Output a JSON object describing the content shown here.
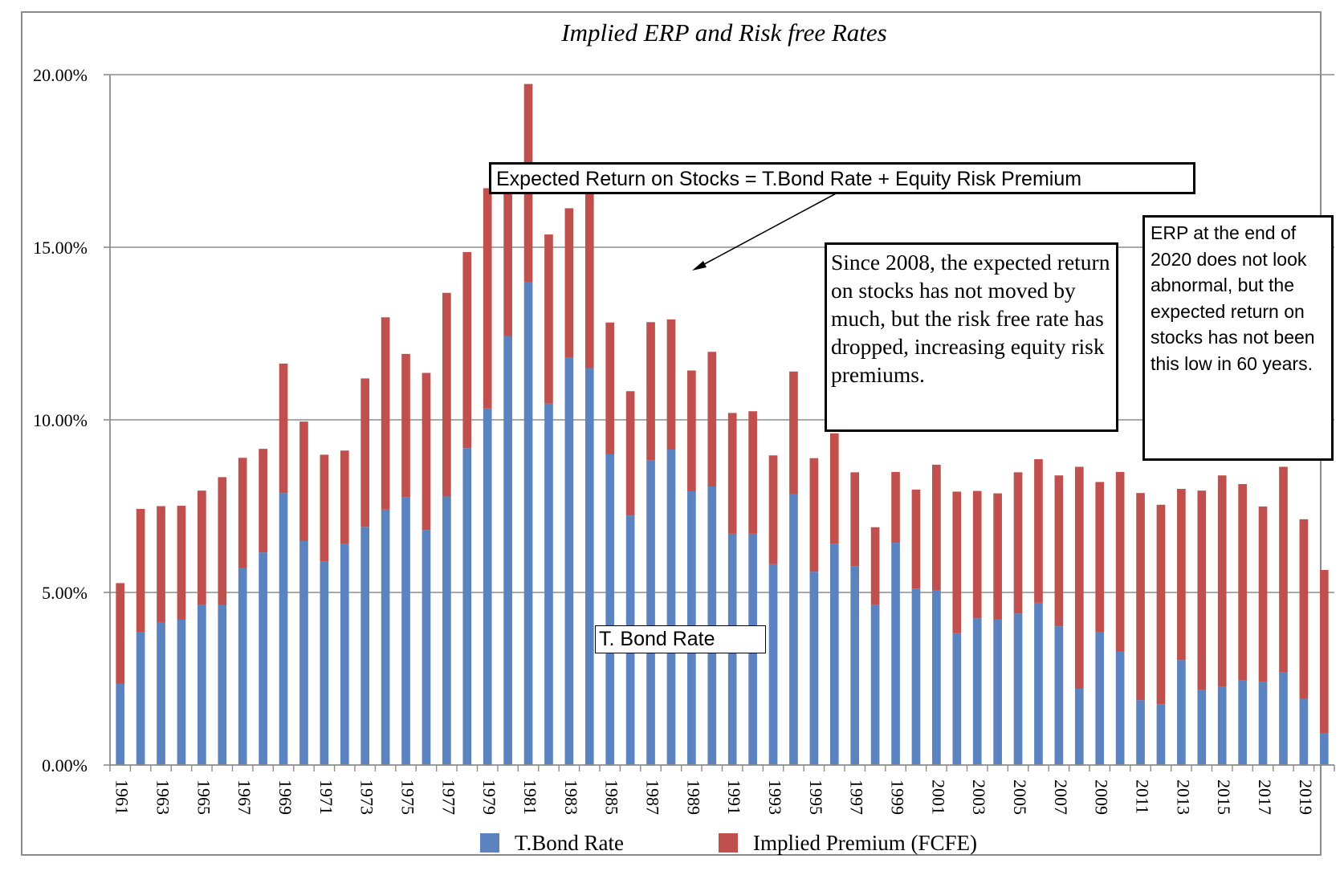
{
  "chart_data": {
    "type": "bar",
    "stacked": true,
    "title": "Implied ERP and Risk free Rates",
    "xlabel": "",
    "ylabel": "",
    "ylim": [
      0,
      0.2
    ],
    "y_ticks": [
      "0.00%",
      "5.00%",
      "10.00%",
      "15.00%",
      "20.00%"
    ],
    "grid": true,
    "legend_position": "bottom",
    "categories": [
      "1961",
      "1962",
      "1963",
      "1964",
      "1965",
      "1966",
      "1967",
      "1968",
      "1969",
      "1970",
      "1971",
      "1972",
      "1973",
      "1974",
      "1975",
      "1976",
      "1977",
      "1978",
      "1979",
      "1980",
      "1981",
      "1982",
      "1983",
      "1984",
      "1985",
      "1986",
      "1987",
      "1988",
      "1989",
      "1990",
      "1991",
      "1992",
      "1993",
      "1994",
      "1995",
      "1996",
      "1997",
      "1998",
      "1999",
      "2000",
      "2001",
      "2002",
      "2003",
      "2004",
      "2005",
      "2006",
      "2007",
      "2008",
      "2009",
      "2010",
      "2011",
      "2012",
      "2013",
      "2014",
      "2015",
      "2016",
      "2017",
      "2018",
      "2019",
      "2020"
    ],
    "x_tick_labels": [
      "1961",
      "1963",
      "1965",
      "1967",
      "1969",
      "1971",
      "1973",
      "1975",
      "1977",
      "1979",
      "1981",
      "1983",
      "1985",
      "1987",
      "1989",
      "1991",
      "1993",
      "1995",
      "1997",
      "1999",
      "2001",
      "2003",
      "2005",
      "2007",
      "2009",
      "2011",
      "2013",
      "2015",
      "2017",
      "2019"
    ],
    "series": [
      {
        "name": "T.Bond Rate",
        "color": "#5b83c0",
        "values": [
          0.0235,
          0.0385,
          0.0414,
          0.0421,
          0.0465,
          0.0464,
          0.057,
          0.0616,
          0.0788,
          0.065,
          0.0589,
          0.0641,
          0.069,
          0.074,
          0.0776,
          0.0681,
          0.0778,
          0.0918,
          0.1033,
          0.1243,
          0.1398,
          0.1047,
          0.118,
          0.115,
          0.09,
          0.0723,
          0.0883,
          0.0914,
          0.0793,
          0.0807,
          0.067,
          0.067,
          0.0582,
          0.0785,
          0.056,
          0.0641,
          0.0576,
          0.0465,
          0.0644,
          0.0511,
          0.0505,
          0.0382,
          0.0425,
          0.0422,
          0.0439,
          0.047,
          0.0402,
          0.0221,
          0.0384,
          0.0329,
          0.0188,
          0.0176,
          0.0304,
          0.0217,
          0.0227,
          0.0245,
          0.0241,
          0.0268,
          0.0192,
          0.0093
        ]
      },
      {
        "name": "Implied Premium (FCFE)",
        "color": "#c0504d",
        "values": [
          0.0292,
          0.0357,
          0.0336,
          0.033,
          0.033,
          0.037,
          0.032,
          0.03,
          0.0375,
          0.0345,
          0.031,
          0.027,
          0.043,
          0.0557,
          0.0415,
          0.0455,
          0.059,
          0.0568,
          0.0638,
          0.042,
          0.0575,
          0.049,
          0.0433,
          0.0515,
          0.0382,
          0.036,
          0.04,
          0.0377,
          0.035,
          0.039,
          0.035,
          0.0355,
          0.0315,
          0.0355,
          0.0329,
          0.032,
          0.0272,
          0.0224,
          0.0205,
          0.0287,
          0.0365,
          0.041,
          0.0369,
          0.0365,
          0.0409,
          0.0416,
          0.0437,
          0.0643,
          0.0436,
          0.052,
          0.06,
          0.0578,
          0.0496,
          0.0578,
          0.0612,
          0.0569,
          0.0508,
          0.0596,
          0.052,
          0.0472
        ]
      }
    ]
  },
  "annotations": {
    "formula": "Expected Return on Stocks = T.Bond Rate + Equity Risk Premium",
    "since_2008": "Since 2008, the expected return on stocks has not moved by much, but the risk free rate has dropped, increasing equity risk premiums.",
    "erp_2020": "ERP at the end of 2020 does not look abnormal, but the expected return on stocks has not been this low in 60 years.",
    "tbond_label": "T. Bond Rate"
  }
}
